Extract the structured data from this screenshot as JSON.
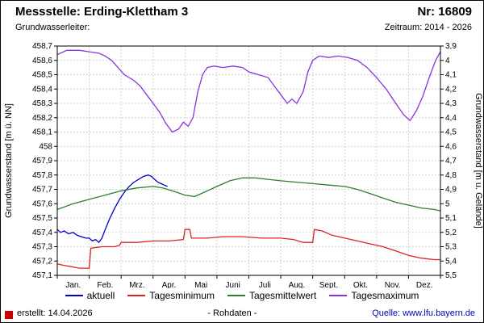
{
  "header": {
    "title": "Messstelle: Erding-Klettham 3",
    "number": "Nr: 16809",
    "aquifer_label": "Grundwasserleiter:",
    "period": "Zeitraum: 2014 - 2026"
  },
  "footer": {
    "created": "erstellt: 14.04.2026",
    "rohdaten": "- Rohdaten -",
    "source": "Quelle: www.lfu.bayern.de"
  },
  "colors": {
    "link": "#0000bb",
    "grid": "#c9c9c9",
    "axis": "#000000"
  },
  "chart_data": {
    "type": "line",
    "x_unit": "month",
    "xlim": [
      0,
      12
    ],
    "ylim_left": [
      457.1,
      458.7
    ],
    "ylim_right": [
      5.5,
      3.9
    ],
    "ylabel_left": "Grundwasserstand [m ü. NN]",
    "ylabel_right": "Grundwasserstand [m u. Gelände]",
    "grid": true,
    "legend_position": "bottom",
    "yticks_left_top_to_bottom": [
      "458,7",
      "458,6",
      "458,5",
      "458,4",
      "458,3",
      "458,2",
      "458,1",
      "458",
      "457,9",
      "457,8",
      "457,7",
      "457,6",
      "457,5",
      "457,4",
      "457,3",
      "457,2",
      "457,1"
    ],
    "yticks_right_top_to_bottom": [
      "3,9",
      "4",
      "4,1",
      "4,2",
      "4,3",
      "4,4",
      "4,5",
      "4,6",
      "4,7",
      "4,8",
      "4,9",
      "5",
      "5,1",
      "5,2",
      "5,3",
      "5,4",
      "5,5"
    ],
    "month_labels": [
      "Jan.",
      "Feb.",
      "Mrz.",
      "Apr.",
      "Mai",
      "Juni",
      "Juli",
      "Aug.",
      "Sept.",
      "Okt.",
      "Nov.",
      "Dez."
    ],
    "series": [
      {
        "name": "aktuell",
        "color": "#0000cc",
        "points": [
          [
            0,
            457.42
          ],
          [
            0.1,
            457.4
          ],
          [
            0.22,
            457.41
          ],
          [
            0.35,
            457.39
          ],
          [
            0.5,
            457.4
          ],
          [
            0.62,
            457.38
          ],
          [
            0.75,
            457.37
          ],
          [
            0.9,
            457.36
          ],
          [
            1.0,
            457.36
          ],
          [
            1.1,
            457.34
          ],
          [
            1.2,
            457.35
          ],
          [
            1.3,
            457.33
          ],
          [
            1.4,
            457.36
          ],
          [
            1.5,
            457.42
          ],
          [
            1.65,
            457.5
          ],
          [
            1.8,
            457.57
          ],
          [
            1.95,
            457.63
          ],
          [
            2.1,
            457.68
          ],
          [
            2.25,
            457.72
          ],
          [
            2.4,
            457.75
          ],
          [
            2.55,
            457.77
          ],
          [
            2.7,
            457.79
          ],
          [
            2.85,
            457.8
          ],
          [
            2.95,
            457.79
          ],
          [
            3.05,
            457.77
          ],
          [
            3.15,
            457.75
          ],
          [
            3.25,
            457.74
          ],
          [
            3.35,
            457.73
          ],
          [
            3.45,
            457.72
          ]
        ]
      },
      {
        "name": "Tagesminimum",
        "color": "#dd2222",
        "points": [
          [
            0,
            457.18
          ],
          [
            0.2,
            457.17
          ],
          [
            0.45,
            457.16
          ],
          [
            0.7,
            457.15
          ],
          [
            1.0,
            457.15
          ],
          [
            1.05,
            457.29
          ],
          [
            1.4,
            457.3
          ],
          [
            1.8,
            457.3
          ],
          [
            1.95,
            457.31
          ],
          [
            2.0,
            457.33
          ],
          [
            2.5,
            457.33
          ],
          [
            3.0,
            457.34
          ],
          [
            3.5,
            457.34
          ],
          [
            3.95,
            457.35
          ],
          [
            4.0,
            457.42
          ],
          [
            4.15,
            457.42
          ],
          [
            4.2,
            457.36
          ],
          [
            4.7,
            457.36
          ],
          [
            5.2,
            457.37
          ],
          [
            5.8,
            457.37
          ],
          [
            6.4,
            457.36
          ],
          [
            7.0,
            457.36
          ],
          [
            7.4,
            457.35
          ],
          [
            7.7,
            457.33
          ],
          [
            8.0,
            457.33
          ],
          [
            8.05,
            457.42
          ],
          [
            8.3,
            457.41
          ],
          [
            8.6,
            457.38
          ],
          [
            9.0,
            457.36
          ],
          [
            9.4,
            457.34
          ],
          [
            9.8,
            457.32
          ],
          [
            10.2,
            457.3
          ],
          [
            10.6,
            457.27
          ],
          [
            11.0,
            457.24
          ],
          [
            11.4,
            457.22
          ],
          [
            11.8,
            457.21
          ],
          [
            12,
            457.21
          ]
        ]
      },
      {
        "name": "Tagesmittelwert",
        "color": "#2e7d32",
        "points": [
          [
            0,
            457.56
          ],
          [
            0.5,
            457.6
          ],
          [
            1.0,
            457.63
          ],
          [
            1.5,
            457.66
          ],
          [
            2.0,
            457.69
          ],
          [
            2.5,
            457.71
          ],
          [
            3.0,
            457.72
          ],
          [
            3.3,
            457.71
          ],
          [
            3.6,
            457.69
          ],
          [
            4.0,
            457.66
          ],
          [
            4.3,
            457.65
          ],
          [
            4.6,
            457.68
          ],
          [
            5.0,
            457.72
          ],
          [
            5.4,
            457.76
          ],
          [
            5.8,
            457.78
          ],
          [
            6.2,
            457.78
          ],
          [
            6.6,
            457.77
          ],
          [
            7.0,
            457.76
          ],
          [
            7.5,
            457.75
          ],
          [
            8.0,
            457.74
          ],
          [
            8.5,
            457.73
          ],
          [
            9.0,
            457.72
          ],
          [
            9.4,
            457.7
          ],
          [
            9.8,
            457.67
          ],
          [
            10.2,
            457.64
          ],
          [
            10.6,
            457.61
          ],
          [
            11.0,
            457.59
          ],
          [
            11.4,
            457.57
          ],
          [
            11.8,
            457.56
          ],
          [
            12,
            457.55
          ]
        ]
      },
      {
        "name": "Tagesmaximum",
        "color": "#8833dd",
        "points": [
          [
            0,
            458.64
          ],
          [
            0.3,
            458.67
          ],
          [
            0.7,
            458.67
          ],
          [
            1.0,
            458.66
          ],
          [
            1.3,
            458.65
          ],
          [
            1.5,
            458.63
          ],
          [
            1.7,
            458.6
          ],
          [
            1.9,
            458.55
          ],
          [
            2.1,
            458.5
          ],
          [
            2.4,
            458.46
          ],
          [
            2.6,
            458.42
          ],
          [
            2.8,
            458.36
          ],
          [
            3.0,
            458.3
          ],
          [
            3.2,
            458.24
          ],
          [
            3.4,
            458.16
          ],
          [
            3.6,
            458.1
          ],
          [
            3.8,
            458.12
          ],
          [
            3.95,
            458.17
          ],
          [
            4.1,
            458.14
          ],
          [
            4.25,
            458.2
          ],
          [
            4.4,
            458.38
          ],
          [
            4.55,
            458.5
          ],
          [
            4.7,
            458.55
          ],
          [
            4.9,
            458.56
          ],
          [
            5.2,
            458.55
          ],
          [
            5.5,
            458.56
          ],
          [
            5.8,
            458.55
          ],
          [
            6.0,
            458.52
          ],
          [
            6.3,
            458.5
          ],
          [
            6.6,
            458.48
          ],
          [
            6.8,
            458.42
          ],
          [
            7.0,
            458.36
          ],
          [
            7.2,
            458.3
          ],
          [
            7.35,
            458.33
          ],
          [
            7.5,
            458.3
          ],
          [
            7.7,
            458.38
          ],
          [
            7.85,
            458.52
          ],
          [
            8.0,
            458.6
          ],
          [
            8.2,
            458.63
          ],
          [
            8.5,
            458.62
          ],
          [
            8.8,
            458.63
          ],
          [
            9.1,
            458.62
          ],
          [
            9.4,
            458.6
          ],
          [
            9.7,
            458.55
          ],
          [
            10.0,
            458.48
          ],
          [
            10.3,
            458.4
          ],
          [
            10.6,
            458.3
          ],
          [
            10.85,
            458.22
          ],
          [
            11.05,
            458.18
          ],
          [
            11.25,
            458.25
          ],
          [
            11.45,
            458.35
          ],
          [
            11.65,
            458.48
          ],
          [
            11.85,
            458.6
          ],
          [
            12,
            458.66
          ]
        ]
      }
    ]
  }
}
